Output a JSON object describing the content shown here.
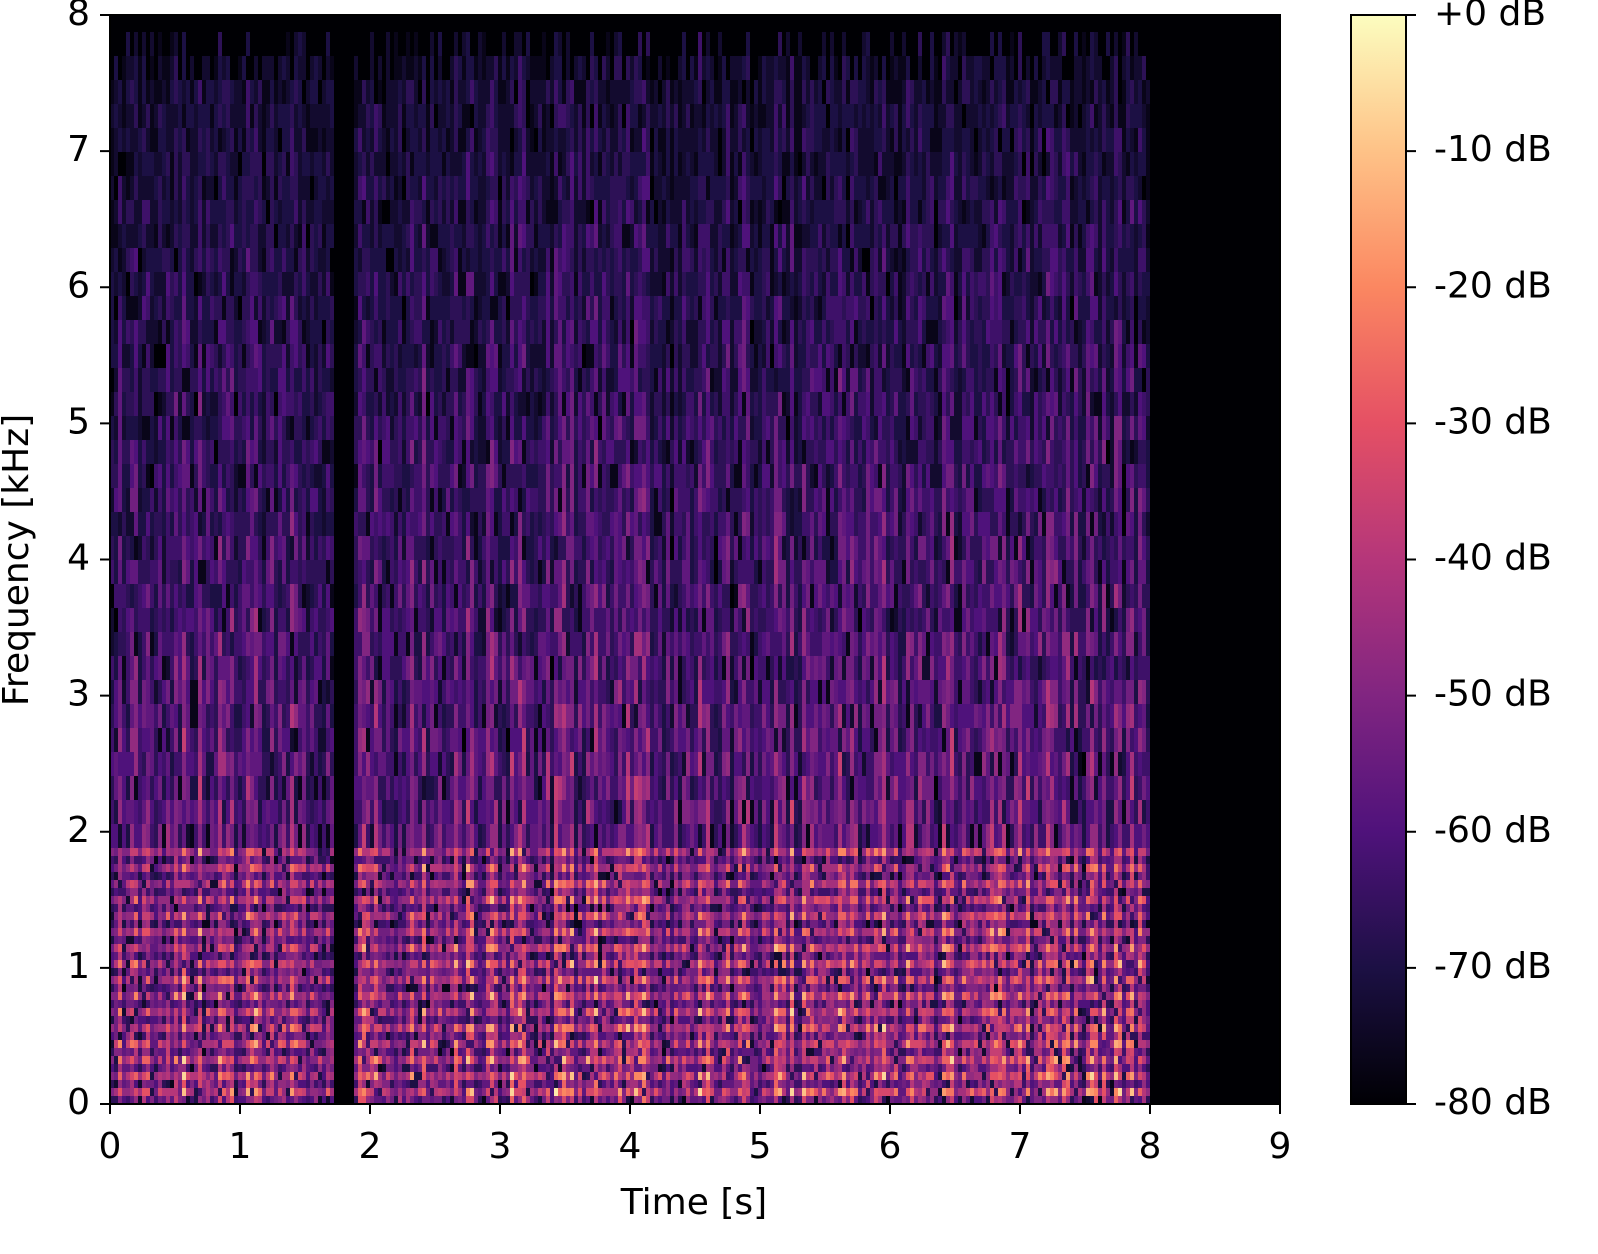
{
  "chart_data": {
    "type": "spectrogram",
    "xlabel": "Time [s]",
    "ylabel": "Frequency [kHz]",
    "xlim": [
      0,
      9
    ],
    "xticks": [
      0,
      1,
      2,
      3,
      4,
      5,
      6,
      7,
      8,
      9
    ],
    "ylim": [
      0,
      8
    ],
    "yticks": [
      0,
      1,
      2,
      3,
      4,
      5,
      6,
      7,
      8
    ],
    "colormap": "magma",
    "colorbar": {
      "lim": [
        -80,
        0
      ],
      "ticks": [
        {
          "value": 0,
          "label": "+0 dB"
        },
        {
          "value": -10,
          "label": "-10 dB"
        },
        {
          "value": -20,
          "label": "-20 dB"
        },
        {
          "value": -30,
          "label": "-30 dB"
        },
        {
          "value": -40,
          "label": "-40 dB"
        },
        {
          "value": -50,
          "label": "-50 dB"
        },
        {
          "value": -60,
          "label": "-60 dB"
        },
        {
          "value": -70,
          "label": "-70 dB"
        },
        {
          "value": -80,
          "label": "-80 dB"
        }
      ]
    }
  }
}
